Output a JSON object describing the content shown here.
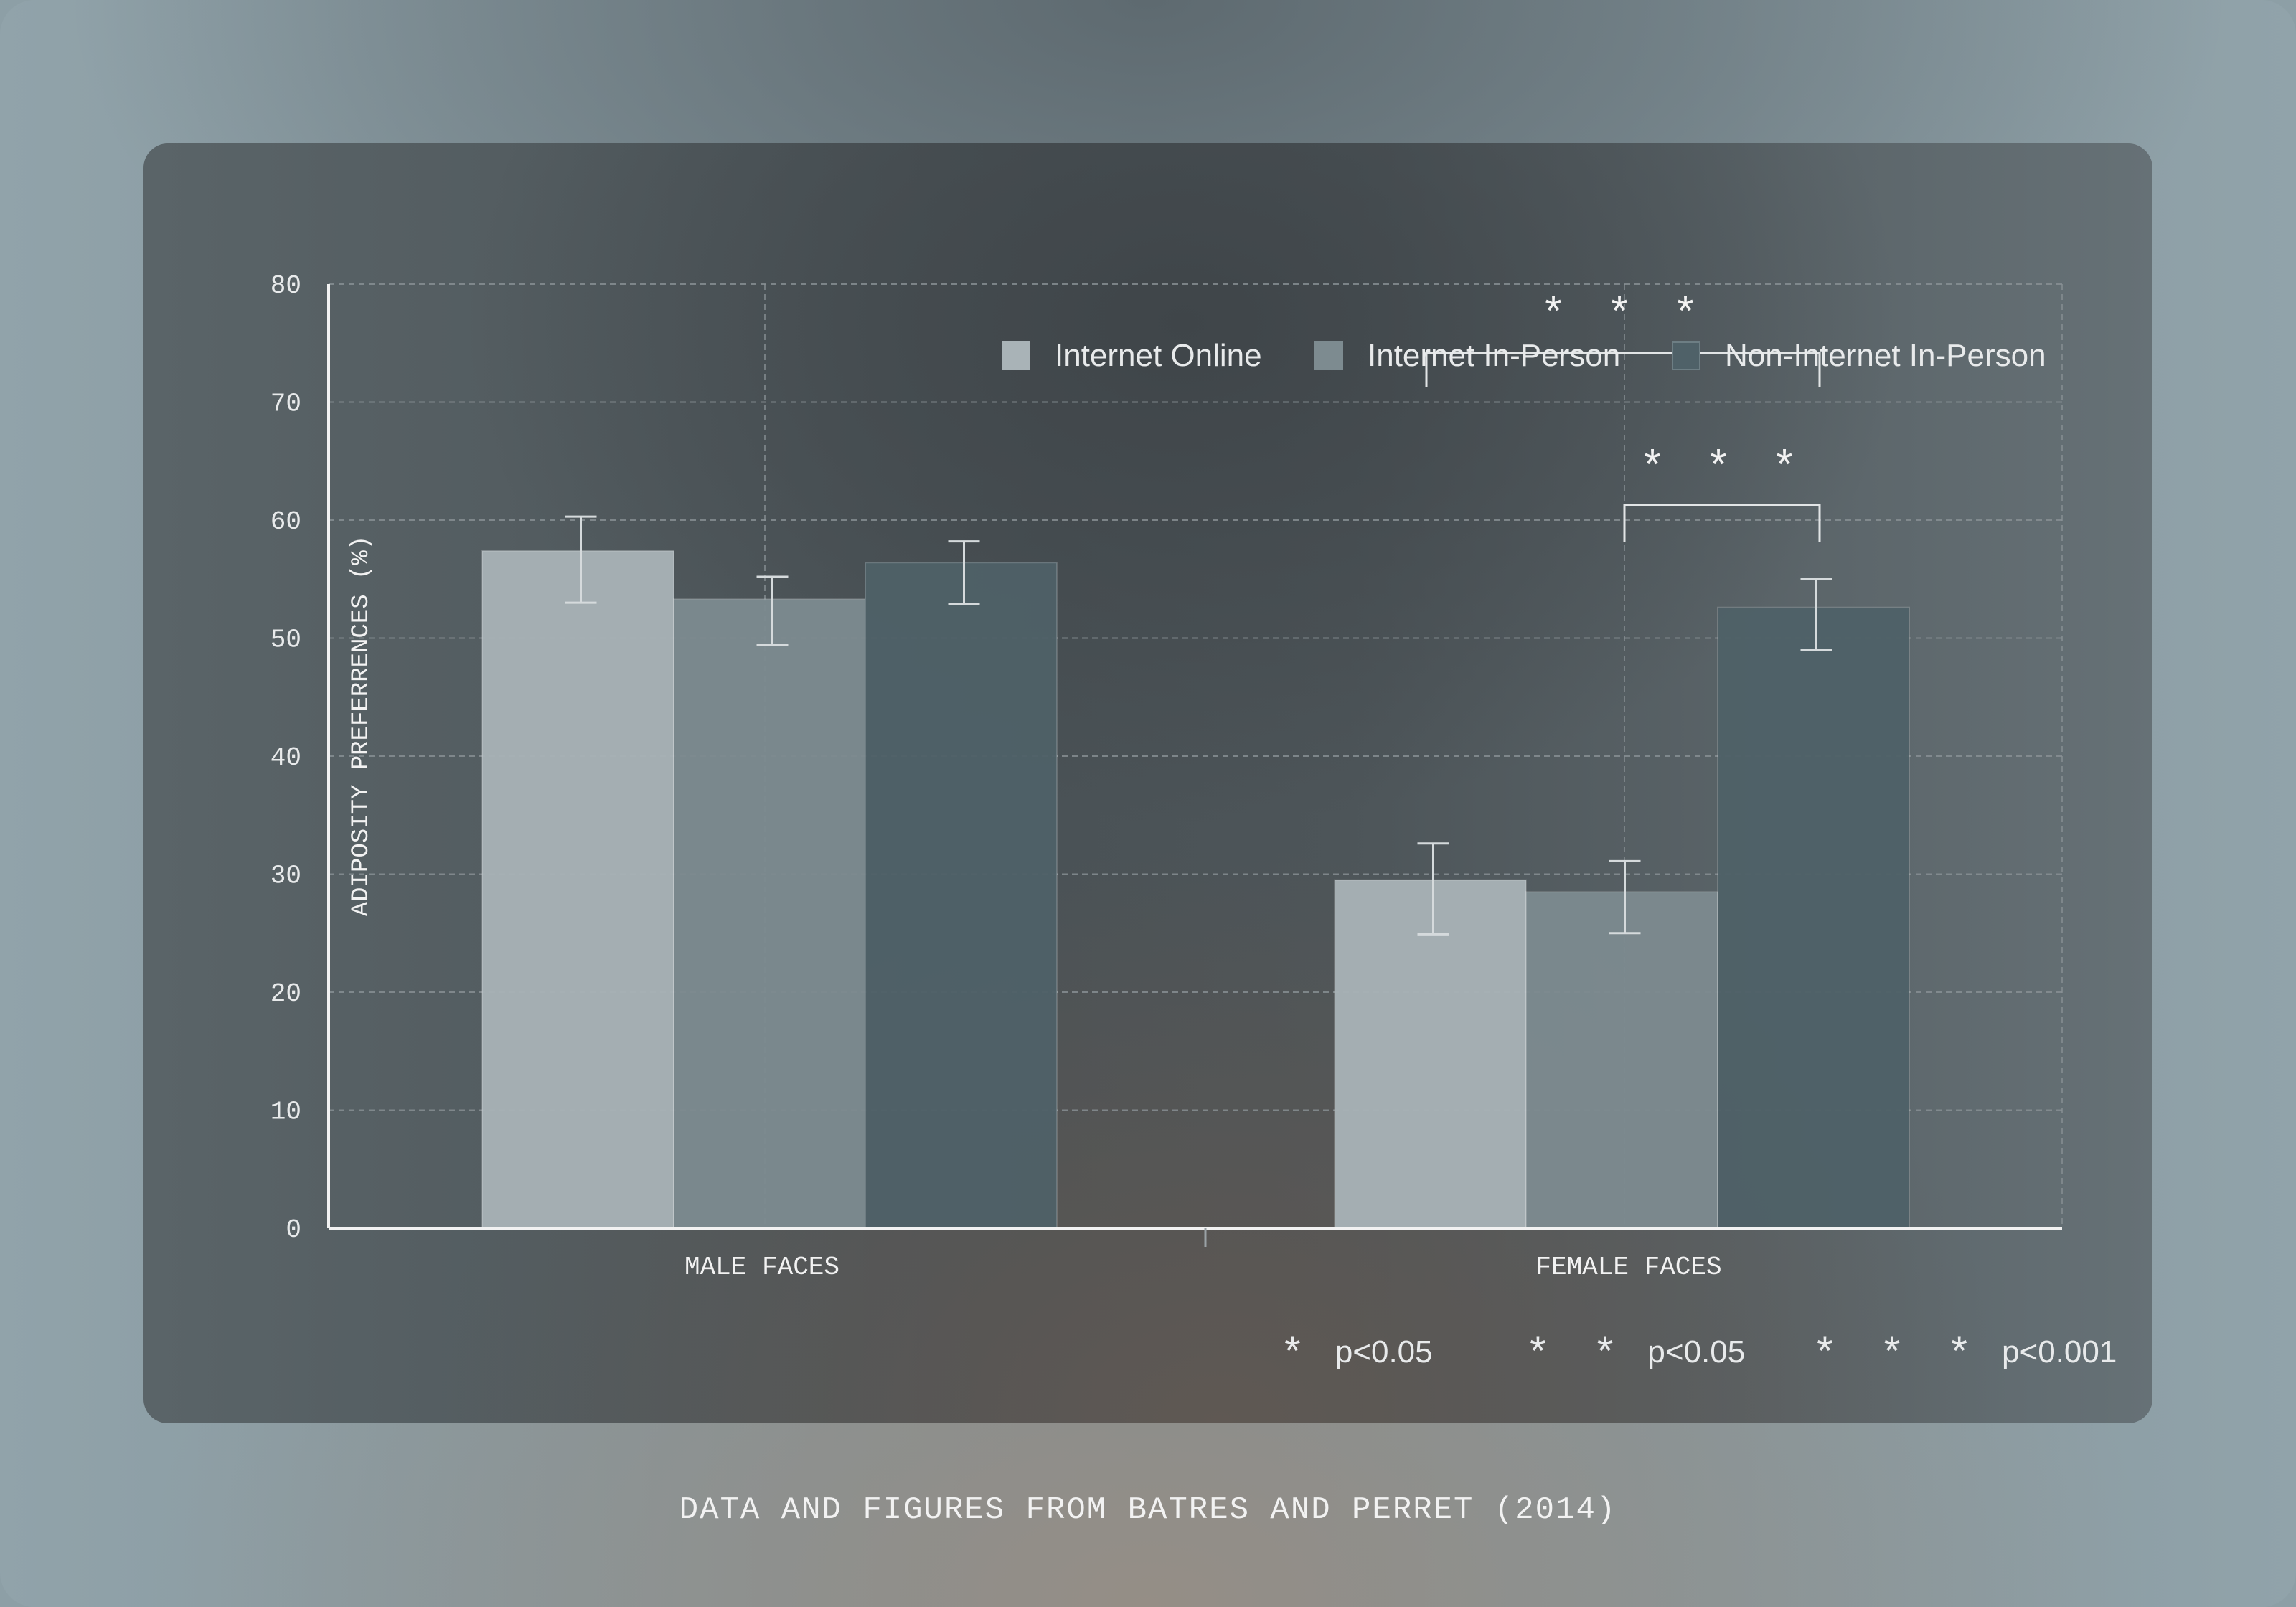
{
  "legend": [
    {
      "label": "Internet Online",
      "color": "#a9b3b7"
    },
    {
      "label": "Internet In-Person",
      "color": "#7d8b90"
    },
    {
      "label": "Non-Internet In-Person",
      "color": "#4f6168"
    }
  ],
  "significance": [
    {
      "stars": "*",
      "label": "p<0.05"
    },
    {
      "stars": "* *",
      "label": "p<0.05"
    },
    {
      "stars": "* * *",
      "label": "p<0.001"
    }
  ],
  "caption": "DATA AND FIGURES FROM BATRES AND PERRET (2014)",
  "chart_data": {
    "type": "bar",
    "ylabel": "ADIPOSITY PREFERRENCES (%)",
    "xlabel": "",
    "ylim": [
      0,
      80
    ],
    "yticks": [
      0,
      10,
      20,
      30,
      40,
      50,
      60,
      70,
      80
    ],
    "grid": true,
    "legend_position": "top-right",
    "categories": [
      "MALE FACES",
      "FEMALE FACES"
    ],
    "series": [
      {
        "name": "Internet Online",
        "values": [
          57.4,
          29.5
        ],
        "error_low": [
          53.0,
          24.9
        ],
        "error_high": [
          60.3,
          32.6
        ]
      },
      {
        "name": "Internet In-Person",
        "values": [
          53.3,
          28.5
        ],
        "error_low": [
          49.4,
          25.0
        ],
        "error_high": [
          55.2,
          31.1
        ]
      },
      {
        "name": "Non-Internet In-Person",
        "values": [
          56.4,
          52.6
        ],
        "error_low": [
          52.9,
          49.0
        ],
        "error_high": [
          58.2,
          55.0
        ]
      }
    ],
    "annotations": [
      {
        "text": "* * *",
        "category": "FEMALE FACES",
        "between": [
          "Internet Online",
          "Non-Internet In-Person"
        ]
      },
      {
        "text": "* * *",
        "category": "FEMALE FACES",
        "between": [
          "Internet In-Person",
          "Non-Internet In-Person"
        ]
      }
    ]
  }
}
